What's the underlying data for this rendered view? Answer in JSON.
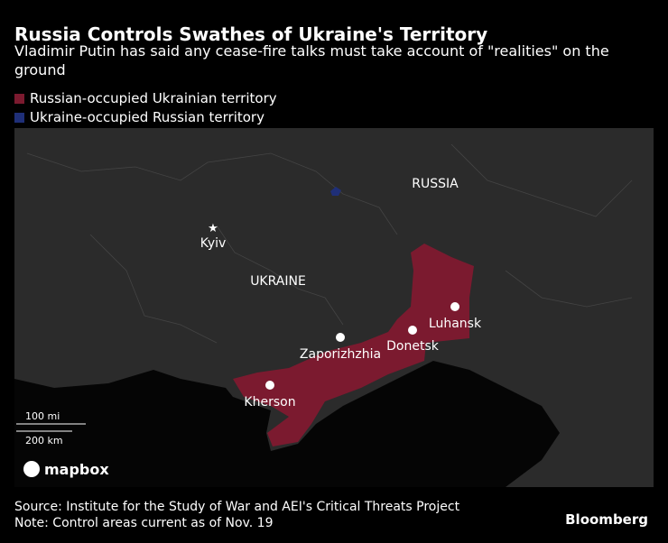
{
  "header": {
    "title": "Russia Controls Swathes of Ukraine's Territory",
    "subtitle": "Vladimir Putin has said any cease-fire talks must take account of \"realities\" on the ground"
  },
  "legend": {
    "items": [
      {
        "label": "Russian-occupied Ukrainian territory",
        "color": "#7b1a2f"
      },
      {
        "label": "Ukraine-occupied Russian territory",
        "color": "#1f2f78"
      }
    ]
  },
  "map": {
    "labels": {
      "countries": [
        "RUSSIA",
        "UKRAINE"
      ],
      "cities": [
        "Kyiv",
        "Luhansk",
        "Donetsk",
        "Zaporizhzhia",
        "Kherson"
      ]
    },
    "scale": [
      "100 mi",
      "200 km"
    ],
    "attribution": "mapbox"
  },
  "footer": {
    "source": "Source: Institute for the Study of War and AEI's Critical Threats Project",
    "note": "Note: Control areas current as of Nov. 19",
    "brand": "Bloomberg"
  }
}
